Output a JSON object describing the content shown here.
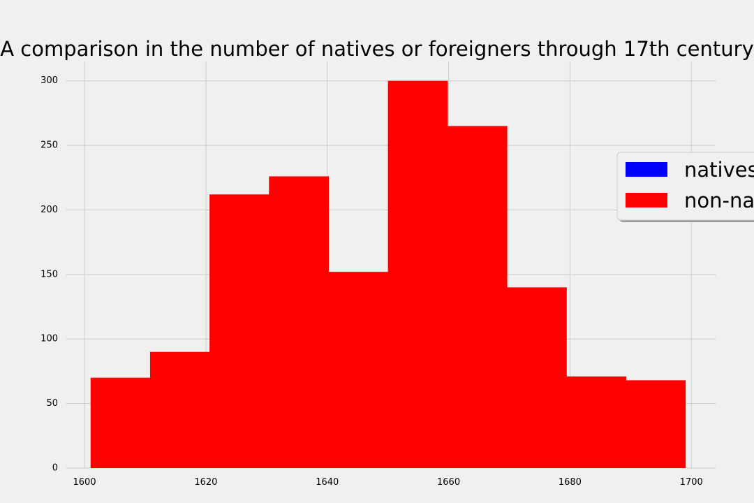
{
  "chart_data": {
    "type": "bar",
    "subtype": "histogram",
    "title": "A comparison in the number of natives or foreigners through 17th century",
    "xlabel": "",
    "ylabel": "",
    "xlim": [
      1597,
      1704
    ],
    "ylim": [
      0,
      315
    ],
    "x_ticks": [
      1600,
      1620,
      1640,
      1660,
      1680,
      1700
    ],
    "y_ticks": [
      0,
      50,
      100,
      150,
      200,
      250,
      300
    ],
    "grid": true,
    "legend_position": "right",
    "bin_edges": [
      1601,
      1610.8,
      1620.6,
      1630.4,
      1640.2,
      1650,
      1659.8,
      1669.6,
      1679.4,
      1689.2,
      1699
    ],
    "series": [
      {
        "name": "natives",
        "color": "#0000ff",
        "values": [
          0,
          0,
          0,
          0,
          0,
          0,
          0,
          0,
          0,
          0
        ]
      },
      {
        "name": "non-natives",
        "color": "#ff0000",
        "values": [
          70,
          90,
          212,
          226,
          152,
          300,
          265,
          140,
          71,
          68
        ]
      }
    ]
  }
}
